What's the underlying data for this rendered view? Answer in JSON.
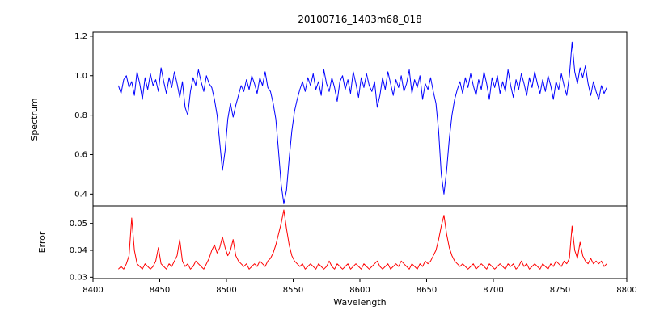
{
  "figure_kind": "matplotlib-two-panel-spectrum-plot",
  "colors": {
    "spectrum_line": "#0000ff",
    "error_line": "#ff0000",
    "axis": "#000000",
    "background": "#ffffff"
  },
  "chart_data": [
    {
      "type": "line",
      "title": "20100716_1403m68_018",
      "ylabel": "Spectrum",
      "xlim": [
        8400,
        8800
      ],
      "ylim": [
        0.34,
        1.22
      ],
      "grid": false,
      "ytick_values": [
        0.4,
        0.6,
        0.8,
        1.0,
        1.2
      ],
      "ytick_labels": [
        "0.4",
        "0.6",
        "0.8",
        "1.0",
        "1.2"
      ],
      "series": [
        {
          "name": "spectrum",
          "color": "#0000ff",
          "x_start": 8419,
          "x_step": 2,
          "values": [
            0.95,
            0.91,
            0.98,
            1.0,
            0.94,
            0.97,
            0.9,
            1.02,
            0.96,
            0.88,
            0.99,
            0.93,
            1.01,
            0.95,
            0.98,
            0.92,
            1.04,
            0.97,
            0.91,
            0.99,
            0.94,
            1.02,
            0.96,
            0.89,
            0.97,
            0.84,
            0.8,
            0.92,
            0.99,
            0.95,
            1.03,
            0.97,
            0.92,
            1.0,
            0.96,
            0.94,
            0.88,
            0.8,
            0.66,
            0.52,
            0.62,
            0.78,
            0.86,
            0.79,
            0.85,
            0.9,
            0.95,
            0.92,
            0.98,
            0.93,
            1.0,
            0.96,
            0.91,
            0.99,
            0.95,
            1.02,
            0.94,
            0.92,
            0.86,
            0.78,
            0.62,
            0.45,
            0.35,
            0.42,
            0.58,
            0.72,
            0.82,
            0.88,
            0.93,
            0.97,
            0.92,
            0.99,
            0.95,
            1.01,
            0.93,
            0.97,
            0.9,
            1.03,
            0.96,
            0.92,
            0.99,
            0.94,
            0.87,
            0.97,
            1.0,
            0.93,
            0.98,
            0.91,
            1.02,
            0.96,
            0.89,
            0.99,
            0.94,
            1.01,
            0.95,
            0.92,
            0.97,
            0.84,
            0.9,
            0.99,
            0.93,
            1.02,
            0.96,
            0.9,
            0.98,
            0.94,
            1.0,
            0.92,
            0.96,
            1.03,
            0.91,
            0.98,
            0.94,
            1.0,
            0.88,
            0.96,
            0.93,
            0.99,
            0.92,
            0.86,
            0.72,
            0.5,
            0.4,
            0.52,
            0.68,
            0.8,
            0.88,
            0.93,
            0.97,
            0.91,
            0.99,
            0.94,
            1.01,
            0.95,
            0.9,
            0.98,
            0.93,
            1.02,
            0.96,
            0.88,
            0.99,
            0.94,
            1.0,
            0.91,
            0.97,
            0.92,
            1.03,
            0.95,
            0.89,
            0.98,
            0.93,
            1.01,
            0.96,
            0.9,
            0.99,
            0.94,
            1.02,
            0.96,
            0.91,
            0.98,
            0.92,
            1.0,
            0.95,
            0.88,
            0.97,
            0.93,
            1.01,
            0.95,
            0.9,
            1.0,
            1.17,
            1.02,
            0.96,
            1.04,
            0.99,
            1.05,
            0.96,
            0.9,
            0.97,
            0.92,
            0.88,
            0.95,
            0.91,
            0.94
          ]
        }
      ],
      "annotations": {
        "absorption_lines": [
          {
            "center": 8497,
            "depth": 0.52
          },
          {
            "center": 8543,
            "depth": 0.35
          },
          {
            "center": 8663,
            "depth": 0.4
          }
        ]
      }
    },
    {
      "type": "line",
      "ylabel": "Error",
      "xlabel": "Wavelength",
      "xlim": [
        8400,
        8800
      ],
      "ylim": [
        0.0295,
        0.0565
      ],
      "grid": false,
      "ytick_values": [
        0.03,
        0.04,
        0.05
      ],
      "ytick_labels": [
        "0.03",
        "0.04",
        "0.05"
      ],
      "xtick_values": [
        8400,
        8450,
        8500,
        8550,
        8600,
        8650,
        8700,
        8750,
        8800
      ],
      "xtick_labels": [
        "8400",
        "8450",
        "8500",
        "8550",
        "8600",
        "8650",
        "8700",
        "8750",
        "8800"
      ],
      "series": [
        {
          "name": "error",
          "color": "#ff0000",
          "x_start": 8419,
          "x_step": 2,
          "values": [
            0.033,
            0.034,
            0.033,
            0.035,
            0.038,
            0.052,
            0.04,
            0.035,
            0.034,
            0.033,
            0.035,
            0.034,
            0.033,
            0.034,
            0.036,
            0.041,
            0.035,
            0.034,
            0.033,
            0.035,
            0.034,
            0.036,
            0.038,
            0.044,
            0.036,
            0.034,
            0.035,
            0.033,
            0.034,
            0.036,
            0.035,
            0.034,
            0.033,
            0.035,
            0.037,
            0.04,
            0.042,
            0.039,
            0.041,
            0.045,
            0.041,
            0.038,
            0.04,
            0.044,
            0.038,
            0.036,
            0.035,
            0.034,
            0.035,
            0.033,
            0.034,
            0.035,
            0.034,
            0.036,
            0.035,
            0.034,
            0.036,
            0.037,
            0.039,
            0.042,
            0.046,
            0.05,
            0.055,
            0.048,
            0.042,
            0.038,
            0.036,
            0.035,
            0.034,
            0.035,
            0.033,
            0.034,
            0.035,
            0.034,
            0.033,
            0.035,
            0.034,
            0.033,
            0.034,
            0.036,
            0.034,
            0.033,
            0.035,
            0.034,
            0.033,
            0.034,
            0.035,
            0.033,
            0.034,
            0.035,
            0.034,
            0.033,
            0.035,
            0.034,
            0.033,
            0.034,
            0.035,
            0.036,
            0.034,
            0.033,
            0.034,
            0.035,
            0.033,
            0.034,
            0.035,
            0.034,
            0.036,
            0.035,
            0.034,
            0.033,
            0.035,
            0.034,
            0.033,
            0.035,
            0.034,
            0.036,
            0.035,
            0.036,
            0.038,
            0.04,
            0.044,
            0.049,
            0.053,
            0.046,
            0.041,
            0.038,
            0.036,
            0.035,
            0.034,
            0.035,
            0.034,
            0.033,
            0.034,
            0.035,
            0.033,
            0.034,
            0.035,
            0.034,
            0.033,
            0.035,
            0.034,
            0.033,
            0.034,
            0.035,
            0.034,
            0.033,
            0.035,
            0.034,
            0.035,
            0.033,
            0.034,
            0.036,
            0.034,
            0.035,
            0.033,
            0.034,
            0.035,
            0.034,
            0.033,
            0.035,
            0.034,
            0.033,
            0.035,
            0.034,
            0.036,
            0.035,
            0.034,
            0.036,
            0.035,
            0.037,
            0.049,
            0.04,
            0.037,
            0.043,
            0.038,
            0.036,
            0.035,
            0.037,
            0.035,
            0.036,
            0.035,
            0.036,
            0.034,
            0.035
          ]
        }
      ]
    }
  ]
}
